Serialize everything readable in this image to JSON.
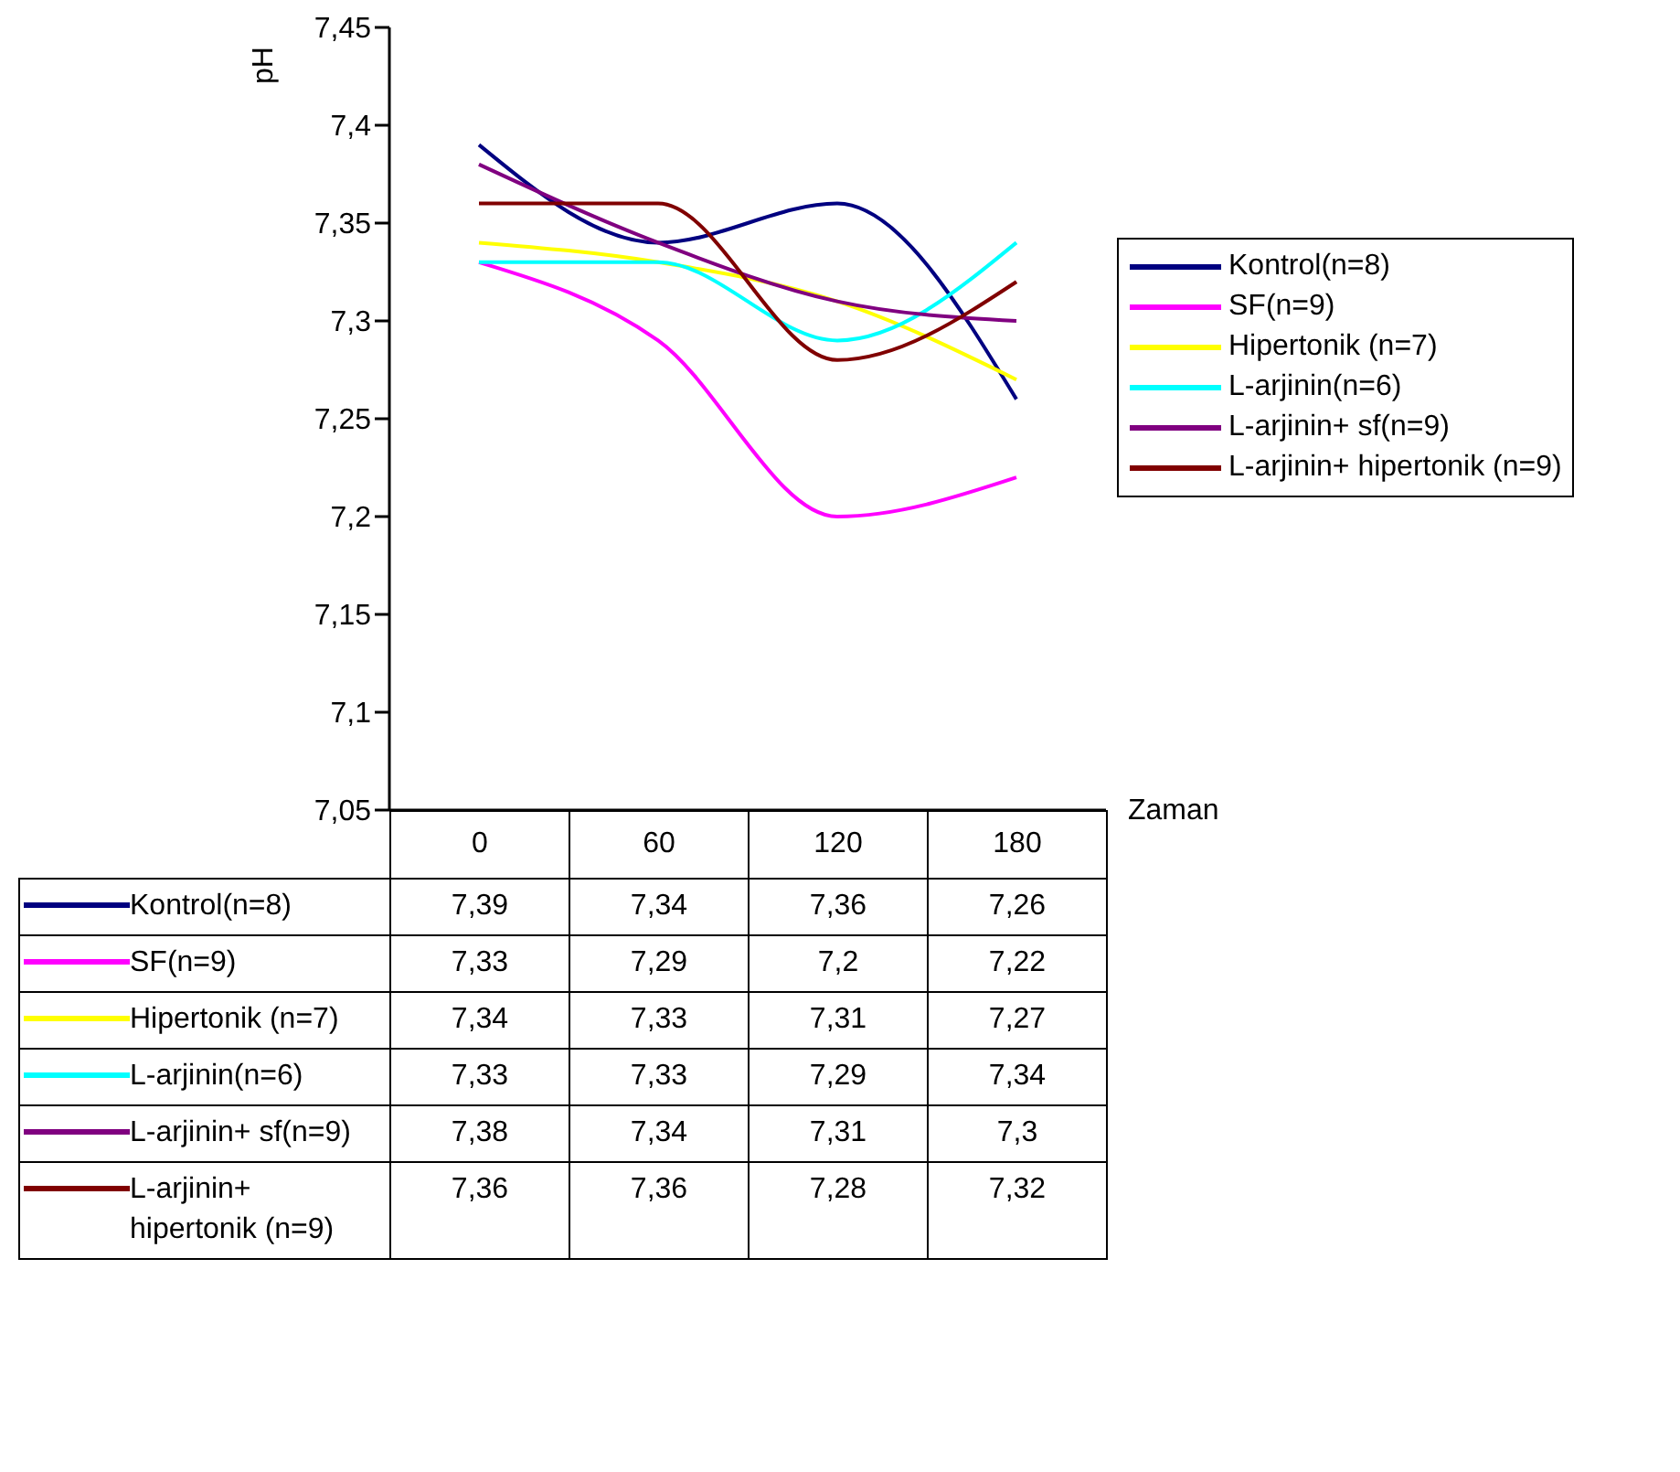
{
  "chart_data": {
    "type": "line",
    "xlabel": "Zaman",
    "ylabel": "pH",
    "categories": [
      "0",
      "60",
      "120",
      "180"
    ],
    "series": [
      {
        "name": "Kontrol(n=8)",
        "color": "#000080",
        "values": [
          7.39,
          7.34,
          7.36,
          7.26
        ],
        "value_labels": [
          "7,39",
          "7,34",
          "7,36",
          "7,26"
        ]
      },
      {
        "name": "SF(n=9)",
        "color": "#ff00ff",
        "values": [
          7.33,
          7.29,
          7.2,
          7.22
        ],
        "value_labels": [
          "7,33",
          "7,29",
          "7,2",
          "7,22"
        ]
      },
      {
        "name": "Hipertonik (n=7)",
        "color": "#ffff00",
        "values": [
          7.34,
          7.33,
          7.31,
          7.27
        ],
        "value_labels": [
          "7,34",
          "7,33",
          "7,31",
          "7,27"
        ]
      },
      {
        "name": "L-arjinin(n=6)",
        "color": "#00ffff",
        "values": [
          7.33,
          7.33,
          7.29,
          7.34
        ],
        "value_labels": [
          "7,33",
          "7,33",
          "7,29",
          "7,34"
        ]
      },
      {
        "name": "L-arjinin+ sf(n=9)",
        "color": "#800080",
        "values": [
          7.38,
          7.34,
          7.31,
          7.3
        ],
        "value_labels": [
          "7,38",
          "7,34",
          "7,31",
          "7,3"
        ]
      },
      {
        "name": "L-arjinin+ hipertonik (n=9)",
        "color": "#800000",
        "values": [
          7.36,
          7.36,
          7.28,
          7.32
        ],
        "value_labels": [
          "7,36",
          "7,36",
          "7,28",
          "7,32"
        ]
      }
    ],
    "ylim": [
      7.05,
      7.45
    ],
    "yticks": [
      {
        "value": 7.05,
        "label": "7,05"
      },
      {
        "value": 7.1,
        "label": "7,1"
      },
      {
        "value": 7.15,
        "label": "7,15"
      },
      {
        "value": 7.2,
        "label": "7,2"
      },
      {
        "value": 7.25,
        "label": "7,25"
      },
      {
        "value": 7.3,
        "label": "7,3"
      },
      {
        "value": 7.35,
        "label": "7,35"
      },
      {
        "value": 7.4,
        "label": "7,4"
      },
      {
        "value": 7.45,
        "label": "7,45"
      }
    ],
    "grid": false,
    "legend": "right",
    "marker": "none",
    "line_style": "solid"
  }
}
